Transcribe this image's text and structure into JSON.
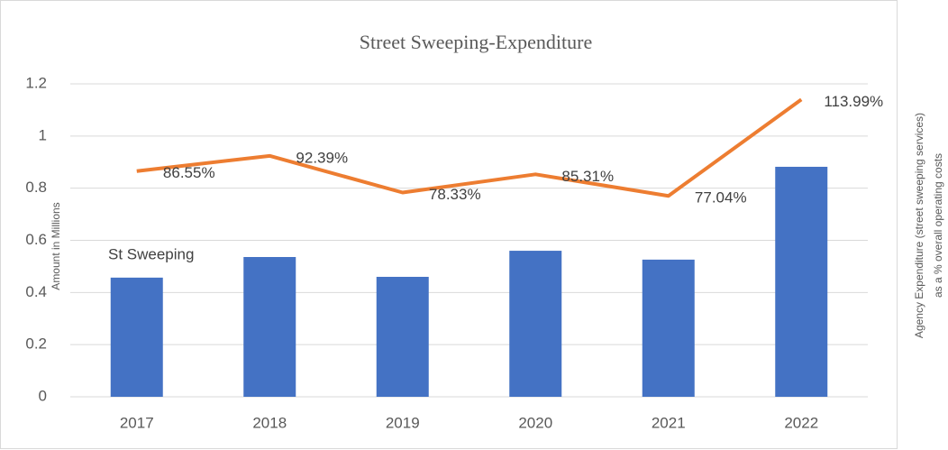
{
  "chart_data": {
    "type": "combo",
    "title": "Street Sweeping-Expenditure",
    "y_label": "Amount in Millions",
    "y2_label": [
      "Agency Expenditure (street sweeping services)",
      "as a % overall operating costs"
    ],
    "categories": [
      "2017",
      "2018",
      "2019",
      "2020",
      "2021",
      "2022"
    ],
    "series": [
      {
        "name": "St Sweeping",
        "type": "bar",
        "color": "#4472c4",
        "values": [
          0.457,
          0.536,
          0.46,
          0.56,
          0.526,
          0.882
        ]
      },
      {
        "type": "line",
        "color": "#ed7d31",
        "values": [
          0.8655,
          0.9239,
          0.7833,
          0.8531,
          0.7704,
          1.1399
        ],
        "value_labels": [
          "86.55%",
          "92.39%",
          "78.33%",
          "85.31%",
          "77.04%",
          "113.99%"
        ]
      }
    ],
    "ylim": [
      0,
      1.2
    ],
    "yticks": [
      0,
      0.2,
      0.4,
      0.6,
      0.8,
      1,
      1.2
    ],
    "grid": true
  }
}
